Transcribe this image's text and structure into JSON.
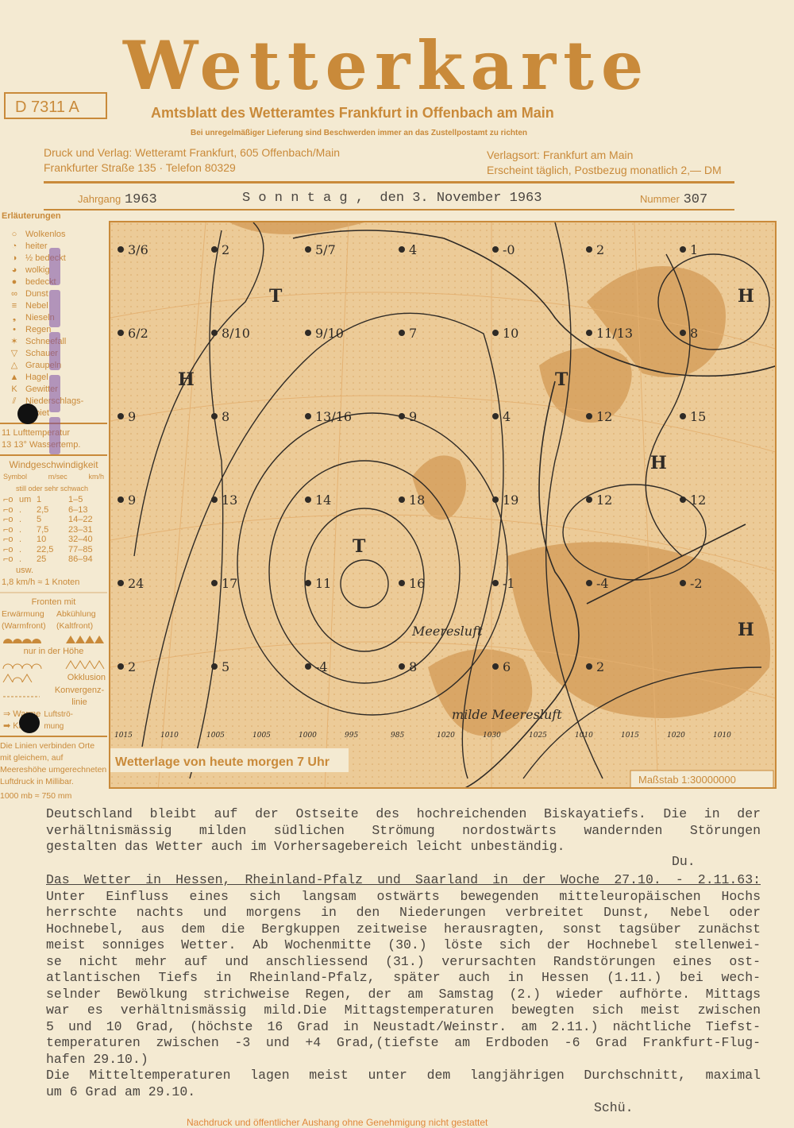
{
  "header": {
    "title": "Wetterkarte",
    "code": "D 7311 A",
    "subtitle": "Amtsblatt des Wetteramtes Frankfurt in Offenbach am Main",
    "notice": "Bei unregelmäßiger Lieferung sind Beschwerden immer an das Zustellpostamt zu richten",
    "publisher_line1": "Druck und Verlag: Wetteramt Frankfurt,  605  Offenbach/Main",
    "publisher_line2": "Frankfurter Straße 135 · Telefon 80329",
    "place_line1": "Verlagsort: Frankfurt am Main",
    "place_line2": "Erscheint täglich, Postbezug monatlich 2,— DM",
    "volume_label": "Jahrgang",
    "volume": "1963",
    "date": "S o n n t a g ,  den 3. November 1963",
    "number_label": "Nummer",
    "number": "307"
  },
  "legend": {
    "title": "Erläuterungen",
    "items": [
      {
        "symbol": "○",
        "label": "Wolkenlos"
      },
      {
        "symbol": "◔",
        "label": "heiter"
      },
      {
        "symbol": "◑",
        "label": "½ bedeckt"
      },
      {
        "symbol": "◕",
        "label": "wolkig"
      },
      {
        "symbol": "●",
        "label": "bedeckt"
      },
      {
        "symbol": "∞",
        "label": "Dunst"
      },
      {
        "symbol": "≡",
        "label": "Nebel"
      },
      {
        "symbol": "❟",
        "label": "Nieseln"
      },
      {
        "symbol": "•",
        "label": "Regen"
      },
      {
        "symbol": "✶",
        "label": "Schneefall"
      },
      {
        "symbol": "▽",
        "label": "Schauer"
      },
      {
        "symbol": "△",
        "label": "Graupeln"
      },
      {
        "symbol": "▲",
        "label": "Hagel"
      },
      {
        "symbol": "K",
        "label": "Gewitter"
      },
      {
        "symbol": "⫽",
        "label": "Niederschlags-gebiet"
      }
    ],
    "temp_air": {
      "value": "11",
      "label": "Lufttemperatur"
    },
    "temp_water": {
      "value": "13",
      "label": "13° Wassertemp."
    },
    "wind_title": "Windgeschwindigkeit",
    "wind_headers": [
      "Symbol",
      "m/sec",
      "km/h"
    ],
    "wind_calm": "still oder sehr schwach",
    "wind_rows": [
      [
        "um",
        "1",
        "1–5"
      ],
      [
        ".",
        "2,5",
        "6–13"
      ],
      [
        ".",
        "5",
        "14–22"
      ],
      [
        ".",
        "7,5",
        "23–31"
      ],
      [
        ".",
        "10",
        "32–40"
      ],
      [
        ".",
        "22,5",
        "77–85"
      ],
      [
        ".",
        "25",
        "86–94"
      ]
    ],
    "wind_usw": "usw.",
    "knot": "1,8 km/h  ≈ 1 Knoten",
    "fronts_title": "Fronten mit",
    "warm": "Erwärmung (Warmfront)",
    "cold": "Abkühlung (Kaltfront)",
    "aloft": "nur in der Höhe",
    "occlusion": "Okklusion",
    "convergence": "Konvergenz-linie",
    "warm_flow": "Warme",
    "cold_flow": "Kalte",
    "flow_label": "Luftströ-mung",
    "isobar_note": "Die Linien verbinden Orte mit gleichem, auf Meereshöhe umgerechneten Luftdruck in Millibar.",
    "mb_note": "1000 mb  ≈  750 mm"
  },
  "map": {
    "caption": "Wetterlage von heute morgen 7 Uhr",
    "scale": "Maßstab 1:30000000",
    "airmass_1": "Meeresluft",
    "airmass_2": "milde Meeresluft",
    "isobar_labels": [
      "1015",
      "1010",
      "1005",
      "1005",
      "1000",
      "995",
      "985",
      "1020",
      "1030",
      "1025",
      "1010",
      "1015",
      "1020",
      "1010"
    ],
    "pressure_centers": [
      "T",
      "T",
      "H",
      "H",
      "H",
      "H",
      "T"
    ],
    "stations": [
      "3/6",
      "2",
      "5/7",
      "4",
      "-0",
      "2",
      "1",
      "6/2",
      "8/10",
      "9/10",
      "7",
      "10",
      "11/13",
      "8",
      "9",
      "8",
      "13/16",
      "9",
      "4",
      "12",
      "15",
      "9",
      "13",
      "14",
      "18",
      "19",
      "12",
      "12",
      "24",
      "17",
      "11",
      "16",
      "-1",
      "-4",
      "-2",
      "2",
      "5",
      "-4",
      "8",
      "6",
      "2"
    ]
  },
  "forecast": {
    "lines": [
      "Deutschland bleibt auf der Ostseite des hochreichenden  Biskayatiefs.  Die in der",
      "verhältnismässig  milden südlichen  Strömung  nordostwärts  wandernden  Störungen",
      "gestalten das Wetter auch im Vorhersagebereich leicht unbeständig."
    ],
    "signature": "Du."
  },
  "review": {
    "heading": "Das Wetter in Hessen, Rheinland-Pfalz und Saarland in der Woche 27.10. - 2.11.63:",
    "lines": [
      "Unter Einfluss eines sich langsam  ostwärts bewegenden  mitteleuropäischen  Hochs",
      "herrschte  nachts und  morgens  in den  Niederungen  verbreitet Dunst, Nebel oder",
      "Hochnebel, aus dem die Bergkuppen zeitweise herausragten, sonst tagsüber zunächst",
      "meist sonniges Wetter.  Ab Wochenmitte (30.) löste sich der Hochnebel stellenwei-",
      "se nicht mehr auf und anschliessend (31.)  verursachten  Randstörungen eines ost-",
      "atlantischen Tiefs in  Rheinland-Pfalz,  später auch in Hessen (1.11.)  bei wech-",
      "selnder Bewölkung strichweise Regen, der am Samstag (2.) wieder aufhörte. Mittags",
      "war es verhältnismässig mild.Die Mittagstemperaturen bewegten sich meist zwischen",
      "5 und 10 Grad, (höchste 16 Grad in Neustadt/Weinstr. am 2.11.) nächtliche Tiefst-",
      "temperaturen zwischen -3 und +4 Grad,(tiefste am Erdboden -6 Grad Frankfurt-Flug-",
      "hafen 29.10.)",
      "Die Mitteltemperaturen lagen  meist unter dem langjährigen  Durchschnitt, maximal",
      "um 6 Grad am 29.10."
    ],
    "signature": "Schü."
  },
  "footer": "Nachdruck und öffentlicher Aushang ohne Genehmigung nicht gestattet",
  "colors": {
    "print": "#c98a3a",
    "paper": "#f4ead2",
    "map": "#eccb98",
    "type": "#4a4540",
    "stamp": "#7d4fa8"
  }
}
